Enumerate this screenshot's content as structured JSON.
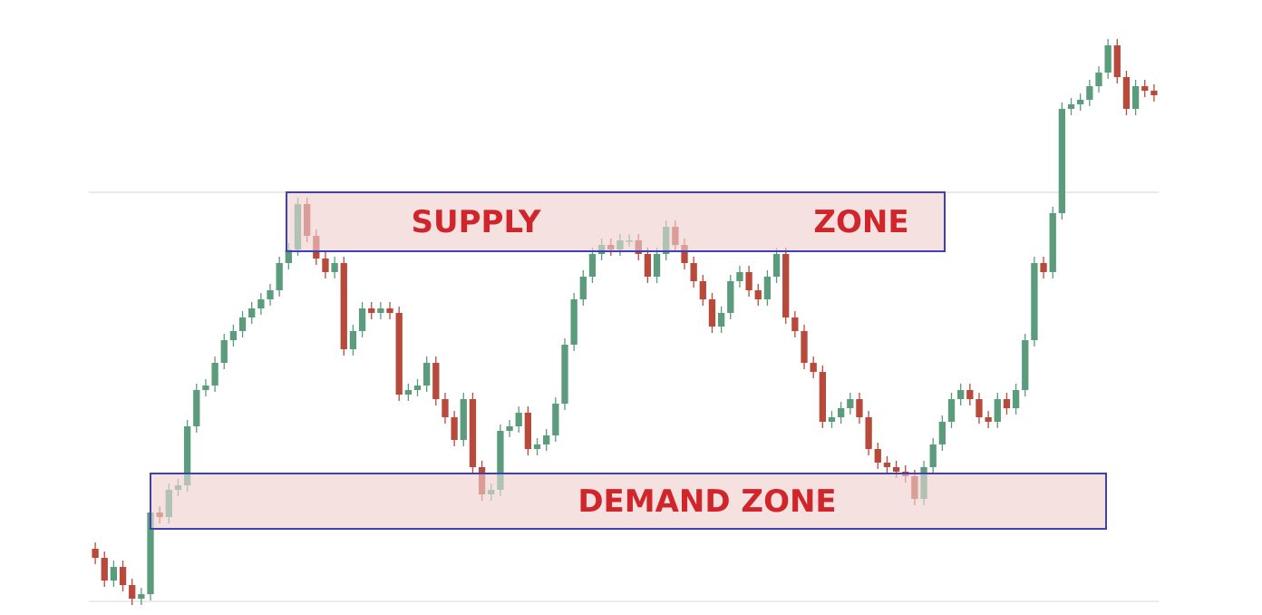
{
  "chart_data": {
    "type": "candlestick",
    "up_color": "#5a9c7b",
    "down_color": "#b84a3c",
    "ylim": [
      -10,
      630
    ],
    "open": [
      58,
      48,
      23,
      38,
      18,
      3,
      8,
      98,
      93,
      123,
      128,
      193,
      233,
      238,
      263,
      288,
      298,
      313,
      323,
      333,
      343,
      373,
      388,
      438,
      403,
      378,
      363,
      373,
      278,
      298,
      323,
      318,
      323,
      318,
      228,
      233,
      238,
      263,
      223,
      203,
      178,
      223,
      148,
      118,
      123,
      188,
      193,
      208,
      168,
      173,
      183,
      218,
      283,
      333,
      358,
      383,
      393,
      388,
      398,
      398,
      383,
      358,
      383,
      413,
      393,
      373,
      353,
      333,
      303,
      318,
      353,
      363,
      343,
      333,
      358,
      383,
      313,
      298,
      263,
      253,
      198,
      203,
      213,
      223,
      203,
      168,
      153,
      148,
      143,
      138,
      113,
      148,
      173,
      198,
      223,
      233,
      223,
      203,
      198,
      223,
      213,
      233,
      288,
      373,
      363,
      428,
      543,
      548,
      553,
      568,
      583,
      613,
      578,
      543,
      568,
      563
    ],
    "high": [
      65,
      55,
      45,
      45,
      25,
      15,
      105,
      105,
      130,
      135,
      200,
      240,
      245,
      270,
      295,
      305,
      320,
      330,
      340,
      350,
      380,
      395,
      445,
      445,
      410,
      385,
      380,
      380,
      305,
      330,
      330,
      330,
      330,
      325,
      240,
      245,
      270,
      270,
      230,
      210,
      230,
      230,
      155,
      130,
      195,
      200,
      215,
      215,
      180,
      190,
      225,
      290,
      340,
      365,
      390,
      400,
      400,
      405,
      405,
      405,
      390,
      390,
      420,
      420,
      400,
      380,
      360,
      340,
      325,
      360,
      370,
      370,
      350,
      365,
      390,
      390,
      320,
      305,
      270,
      260,
      210,
      220,
      230,
      230,
      210,
      175,
      160,
      155,
      150,
      145,
      155,
      180,
      205,
      230,
      240,
      240,
      230,
      210,
      230,
      230,
      240,
      295,
      380,
      380,
      435,
      550,
      555,
      560,
      575,
      590,
      620,
      620,
      585,
      575,
      575,
      570
    ],
    "low": [
      41,
      16,
      16,
      11,
      -4,
      -4,
      1,
      86,
      86,
      116,
      121,
      186,
      226,
      231,
      256,
      281,
      291,
      306,
      316,
      326,
      336,
      366,
      381,
      396,
      371,
      356,
      356,
      271,
      271,
      291,
      311,
      311,
      311,
      221,
      221,
      226,
      231,
      216,
      196,
      171,
      171,
      141,
      111,
      111,
      116,
      181,
      186,
      161,
      161,
      166,
      176,
      211,
      276,
      326,
      351,
      376,
      381,
      381,
      391,
      376,
      351,
      351,
      376,
      386,
      366,
      346,
      326,
      296,
      296,
      311,
      346,
      336,
      326,
      326,
      351,
      306,
      291,
      256,
      246,
      191,
      191,
      196,
      206,
      196,
      161,
      146,
      141,
      136,
      131,
      106,
      106,
      141,
      166,
      191,
      216,
      216,
      196,
      191,
      191,
      206,
      206,
      226,
      281,
      356,
      356,
      421,
      536,
      541,
      546,
      561,
      576,
      571,
      536,
      536,
      556,
      551
    ],
    "close": [
      48,
      23,
      38,
      18,
      3,
      8,
      98,
      93,
      123,
      128,
      193,
      233,
      238,
      263,
      288,
      298,
      313,
      323,
      333,
      343,
      373,
      388,
      438,
      403,
      378,
      363,
      373,
      278,
      298,
      323,
      318,
      323,
      318,
      228,
      233,
      238,
      263,
      223,
      203,
      178,
      223,
      148,
      118,
      123,
      188,
      193,
      208,
      168,
      173,
      183,
      218,
      283,
      333,
      358,
      383,
      393,
      388,
      398,
      398,
      383,
      358,
      383,
      413,
      393,
      373,
      353,
      333,
      303,
      318,
      353,
      363,
      343,
      333,
      358,
      383,
      313,
      298,
      263,
      253,
      198,
      203,
      213,
      223,
      203,
      168,
      153,
      148,
      143,
      138,
      113,
      148,
      173,
      198,
      223,
      233,
      223,
      203,
      198,
      223,
      213,
      233,
      288,
      373,
      363,
      428,
      543,
      548,
      553,
      568,
      583,
      613,
      578,
      543,
      568,
      563,
      558
    ],
    "zones": [
      {
        "labels": [
          "SUPPLY",
          "ZONE"
        ],
        "low": 386,
        "high": 451,
        "color": "#f5e1e1",
        "border": "#3f3fb8"
      },
      {
        "labels": [
          "DEMAND ZONE"
        ],
        "low": 80,
        "high": 141,
        "color": "#f5e1e1",
        "border": "#3f3fb8"
      }
    ]
  }
}
